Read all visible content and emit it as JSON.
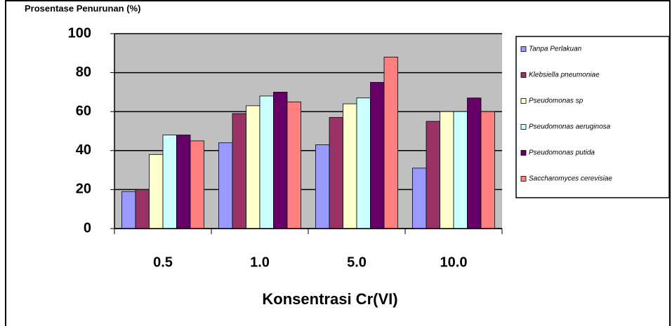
{
  "chart_data": {
    "type": "bar",
    "y_axis_title": "Prosentase Penurunan (%)",
    "x_axis_title": "Konsentrasi Cr(VI)",
    "categories": [
      "0.5",
      "1.0",
      "5.0",
      "10.0"
    ],
    "series": [
      {
        "name": "Tanpa Perlakuan",
        "color": "#9999ff",
        "values": [
          19,
          44,
          43,
          31
        ]
      },
      {
        "name": "Klebsiella pneumoniae",
        "color": "#993366",
        "values": [
          20,
          59,
          57,
          55
        ]
      },
      {
        "name": "Pseudomonas sp",
        "color": "#ffffcc",
        "values": [
          38,
          63,
          64,
          60
        ]
      },
      {
        "name": "Pseudomonas aeruginosa",
        "color": "#ccffff",
        "values": [
          48,
          68,
          67,
          60
        ]
      },
      {
        "name": "Pseudomonas putida",
        "color": "#660066",
        "values": [
          48,
          70,
          75,
          67
        ]
      },
      {
        "name": "Saccharomyces cerevisiae",
        "color": "#ff8080",
        "values": [
          45,
          65,
          88,
          60
        ]
      }
    ],
    "ylim": [
      0,
      100
    ],
    "yticks": [
      0,
      20,
      40,
      60,
      80,
      100
    ],
    "grid": true,
    "plot_background": "#c0c0c0",
    "legend": "right"
  }
}
